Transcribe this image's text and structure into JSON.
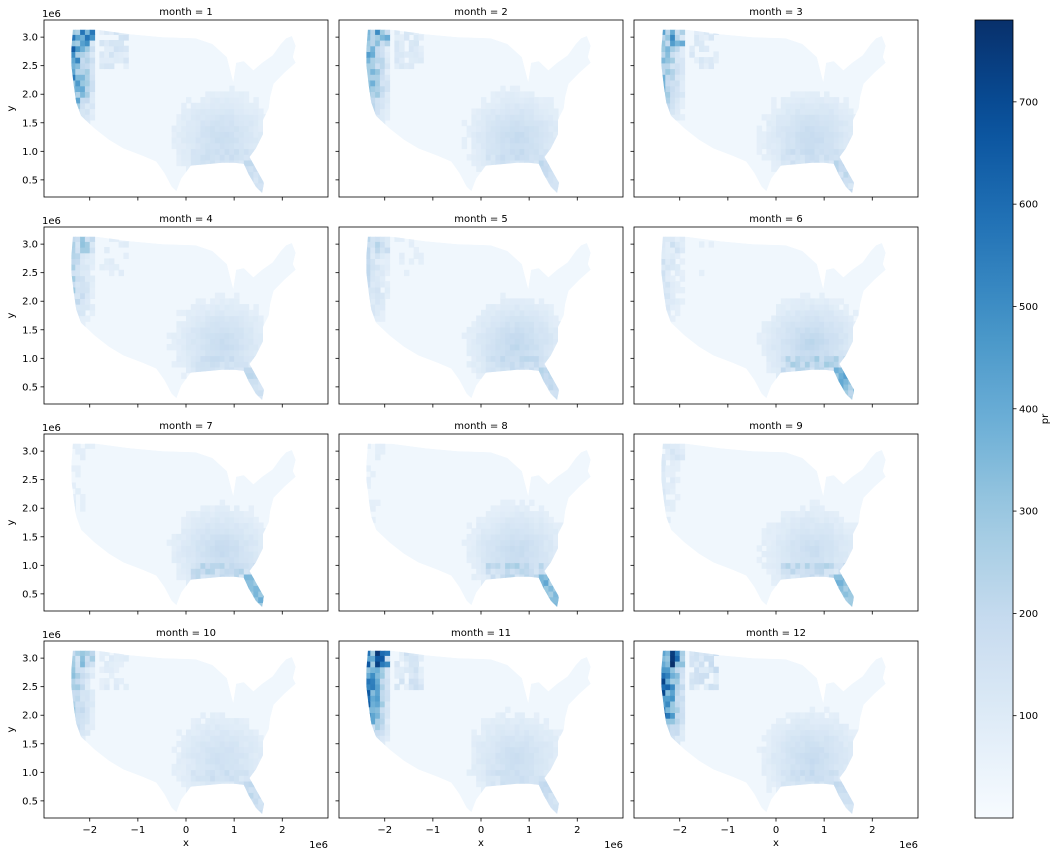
{
  "chart_data": {
    "type": "heatmap",
    "description_kind": "faceted map heatmap",
    "facet_variable": "month",
    "panel_titles": [
      "month = 1",
      "month = 2",
      "month = 3",
      "month = 4",
      "month = 5",
      "month = 6",
      "month = 7",
      "month = 8",
      "month = 9",
      "month = 10",
      "month = 11",
      "month = 12"
    ],
    "xlabel": "x",
    "ylabel": "y",
    "x_offset_label": "1e6",
    "y_offset_label": "1e6",
    "xlim": [
      -2.95,
      2.95
    ],
    "ylim": [
      0.2,
      3.3
    ],
    "x_ticks": [
      -2,
      -1,
      0,
      1,
      2
    ],
    "x_tick_labels": [
      "−2",
      "−1",
      "0",
      "1",
      "2"
    ],
    "y_ticks": [
      0.5,
      1.0,
      1.5,
      2.0,
      2.5,
      3.0
    ],
    "y_tick_labels": [
      "0.5",
      "1.0",
      "1.5",
      "2.0",
      "2.5",
      "3.0"
    ],
    "colorbar": {
      "label": "pr",
      "range": [
        0,
        780
      ],
      "ticks": [
        100,
        200,
        300,
        400,
        500,
        600,
        700
      ],
      "tick_labels": [
        "100",
        "200",
        "300",
        "400",
        "500",
        "600",
        "700"
      ],
      "colormap": "Blues"
    },
    "colors": {
      "low": "#f7fbff",
      "high": "#08306b",
      "axis": "#000000"
    }
  }
}
